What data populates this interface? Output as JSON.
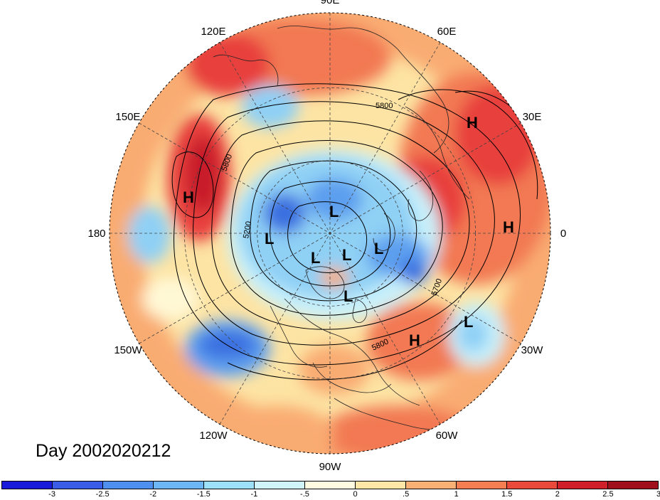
{
  "map": {
    "projection": "polar-stereographic-north",
    "longitude_labels": [
      {
        "text": "90E",
        "angle_deg": 90
      },
      {
        "text": "60E",
        "angle_deg": 60
      },
      {
        "text": "30E",
        "angle_deg": 30
      },
      {
        "text": "0",
        "angle_deg": 0
      },
      {
        "text": "30W",
        "angle_deg": -30
      },
      {
        "text": "60W",
        "angle_deg": -60
      },
      {
        "text": "90W",
        "angle_deg": -90
      },
      {
        "text": "120W",
        "angle_deg": -120
      },
      {
        "text": "150W",
        "angle_deg": -150
      },
      {
        "text": "180",
        "angle_deg": 180
      },
      {
        "text": "150E",
        "angle_deg": 150
      },
      {
        "text": "120E",
        "angle_deg": 120
      }
    ],
    "pressure_centers": [
      {
        "type": "H",
        "lon": 30
      },
      {
        "type": "H",
        "lon": 5
      },
      {
        "type": "H",
        "lon": 170
      },
      {
        "type": "H",
        "lon": -45
      },
      {
        "type": "L",
        "lon": -20
      },
      {
        "type": "L",
        "lon": 80
      },
      {
        "type": "L",
        "lon": 130
      },
      {
        "type": "L",
        "lon": -150
      },
      {
        "type": "L",
        "lon": 20
      },
      {
        "type": "L",
        "lon": -100
      },
      {
        "type": "L",
        "lon": -60
      }
    ],
    "contour_labels": [
      "5800",
      "5800",
      "5200",
      "5700",
      "5800"
    ],
    "colors": {
      "deep_blue": "#1a1adb",
      "blue": "#3a6fe0",
      "mid_blue": "#5d9fef",
      "light_blue": "#8fd0f5",
      "pale_blue": "#c9f1fb",
      "pale_cyan": "#e8fbfd",
      "cream": "#fff8d5",
      "light_orange": "#fde4a4",
      "orange": "#f9ac72",
      "red_orange": "#f27953",
      "red": "#e8413d",
      "dark_red": "#c81a2a",
      "maroon": "#a00f1c"
    }
  },
  "day_label": "Day 2002020212",
  "colorbar": {
    "colors": [
      "#1a1adb",
      "#3a5ce6",
      "#4f8ff0",
      "#6cb6f6",
      "#9de0f9",
      "#cff5fb",
      "#fefbe0",
      "#fee7a6",
      "#f9b074",
      "#f47d52",
      "#ea4a3b",
      "#cf1f2b",
      "#a00f1c"
    ],
    "ticks": [
      "-3",
      "-2.5",
      "-2",
      "-1.5",
      "-1",
      "-.5",
      "0",
      ".5",
      "1",
      "1.5",
      "2",
      "2.5",
      "3"
    ]
  }
}
